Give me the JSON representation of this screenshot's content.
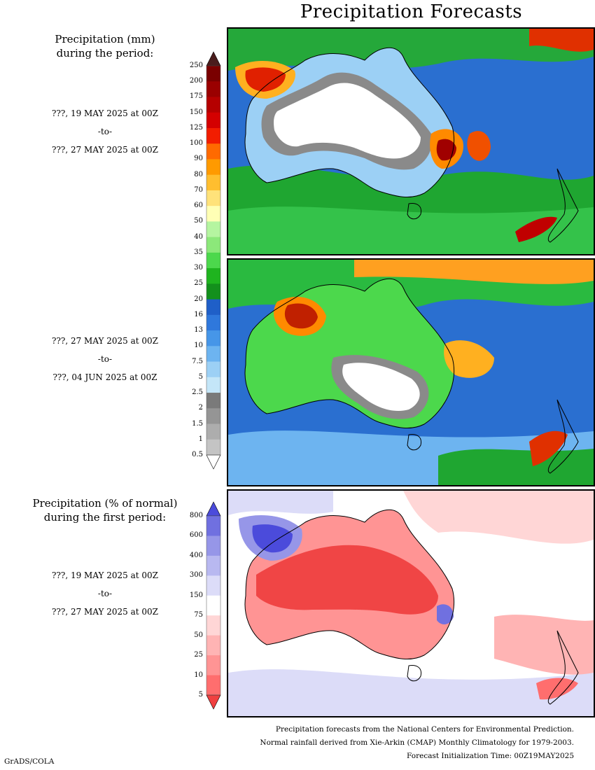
{
  "title": "Precipitation Forecasts",
  "precip_heading": [
    "Precipitation (mm)",
    "during the period:"
  ],
  "period1": {
    "start": "???, 19 MAY 2025 at 00Z",
    "sep": "-to-",
    "end": "???, 27 MAY 2025 at 00Z"
  },
  "period2": {
    "start": "???, 27 MAY 2025 at 00Z",
    "sep": "-to-",
    "end": "???, 04 JUN 2025 at 00Z"
  },
  "anom_heading": [
    "Precipitation (% of normal)",
    "during the first period:"
  ],
  "period3": {
    "start": "???, 19 MAY 2025 at 00Z",
    "sep": "-to-",
    "end": "???, 27 MAY 2025 at 00Z"
  },
  "precip_colorbar": {
    "labels": [
      "250",
      "200",
      "175",
      "150",
      "125",
      "100",
      "90",
      "80",
      "70",
      "60",
      "50",
      "40",
      "35",
      "30",
      "25",
      "20",
      "16",
      "13",
      "10",
      "7.5",
      "5",
      "2.5",
      "2",
      "1.5",
      "1",
      "0.5"
    ],
    "colors": [
      "#4a1d1d",
      "#7a0000",
      "#9a0000",
      "#b50000",
      "#d40000",
      "#f21d00",
      "#ff6a00",
      "#ff9a00",
      "#ffbe2f",
      "#ffe27a",
      "#ffffb5",
      "#b5f5a0",
      "#8ce87a",
      "#4cd84c",
      "#1fb41f",
      "#13901c",
      "#1f5fc8",
      "#2f78dc",
      "#4696e8",
      "#6db4f0",
      "#9cd0f5",
      "#c4e6f8",
      "#7a7a7a",
      "#959595",
      "#adadad",
      "#c4c4c4",
      "#ffffff"
    ]
  },
  "anom_colorbar": {
    "labels": [
      "800",
      "600",
      "400",
      "300",
      "150",
      "75",
      "50",
      "25",
      "10",
      "5"
    ],
    "colors": [
      "#4b4bdb",
      "#7070e0",
      "#9696e8",
      "#b8b8f0",
      "#dcdcf8",
      "#ffffff",
      "#ffd6d6",
      "#ffb4b4",
      "#ff9494",
      "#ff6e6e",
      "#f04040"
    ]
  },
  "footer": [
    "Precipitation forecasts from the National Centers for Environmental Prediction.",
    "Normal rainfall derived from Xie-Arkin (CMAP) Monthly Climatology for 1979-2003.",
    "Forecast Initialization Time: 00Z19MAY2025"
  ],
  "credit": "GrADS/COLA"
}
